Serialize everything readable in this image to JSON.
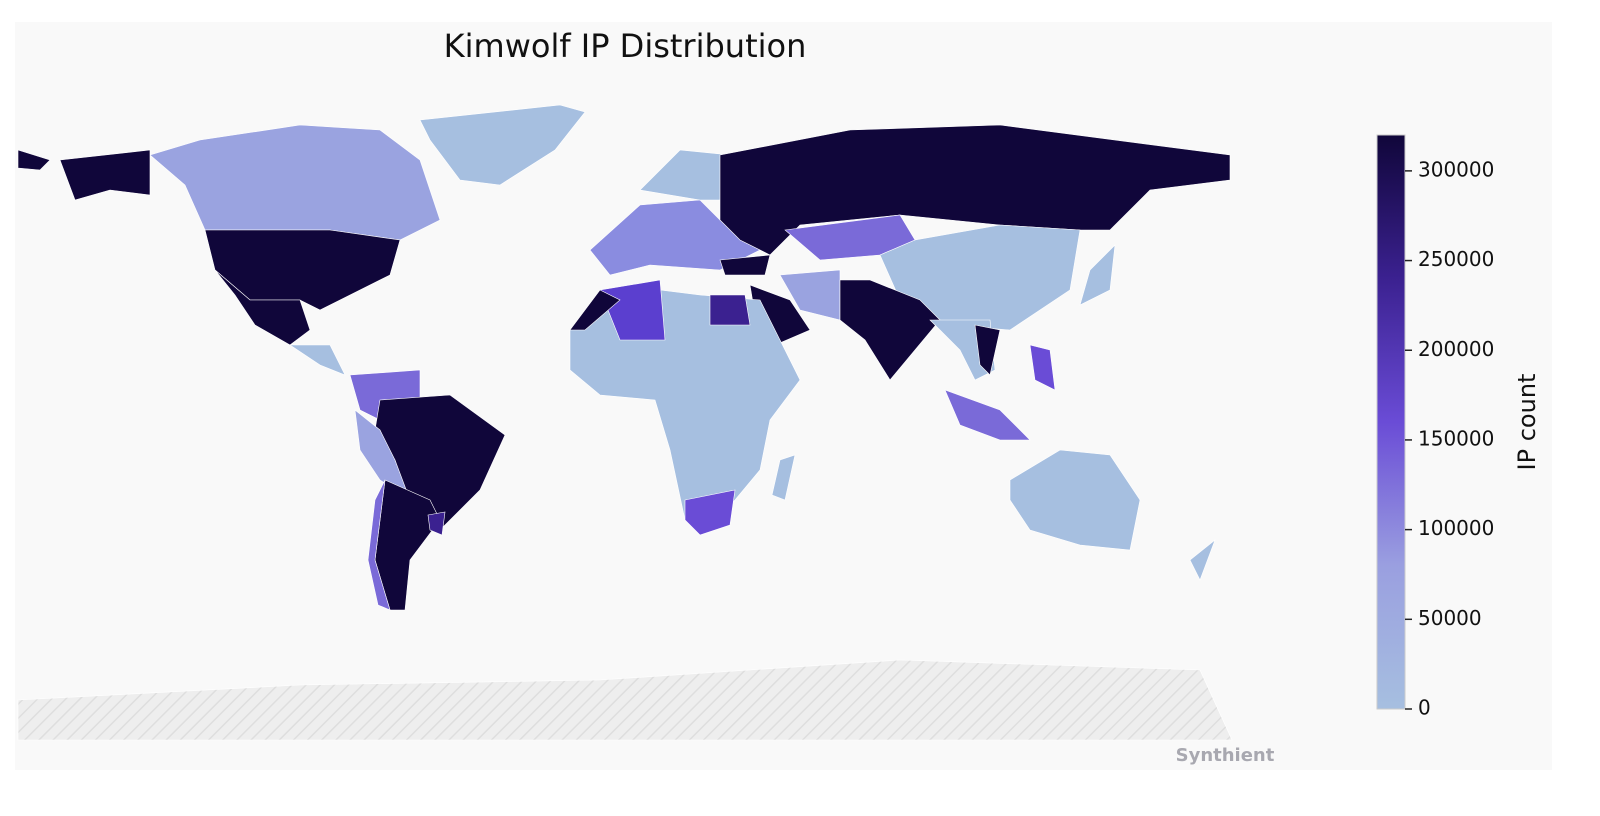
{
  "title": "Kimwolf IP Distribution",
  "colorbar": {
    "label": "IP count",
    "range": [
      0,
      320000
    ],
    "ticks": [
      0,
      50000,
      100000,
      150000,
      200000,
      250000,
      300000
    ],
    "colors": [
      "#a6bfe0",
      "#9a9fe0",
      "#6a4cd6",
      "#3b2190",
      "#10063a"
    ]
  },
  "watermark": "Synthient"
}
